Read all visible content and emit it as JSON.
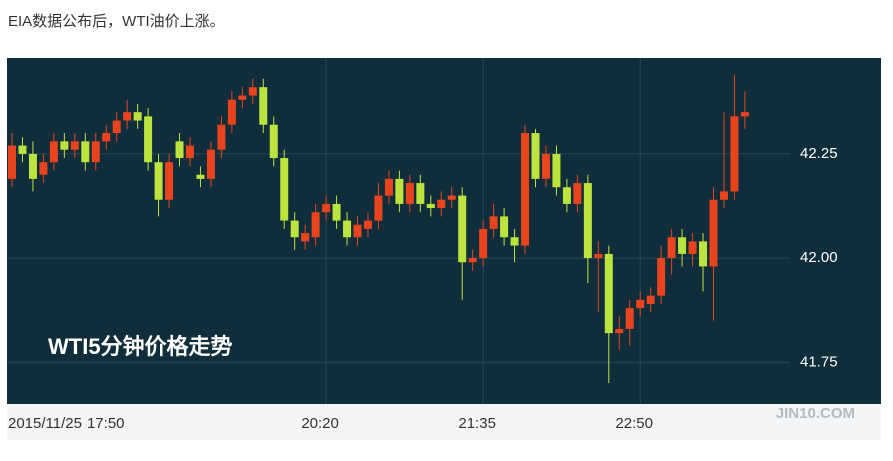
{
  "chart_data": {
    "type": "candlestick",
    "caption": "EIA数据公布后，WTI油价上涨。",
    "title": "WTI5分钟价格走势",
    "watermark": "JIN10.COM",
    "date": "2015/11/25",
    "categories": [
      "17:50",
      null,
      null,
      null,
      null,
      null,
      null,
      null,
      null,
      null,
      null,
      null,
      null,
      null,
      null,
      null,
      null,
      null,
      null,
      null,
      null,
      null,
      null,
      null,
      null,
      null,
      null,
      null,
      null,
      null,
      "20:20",
      null,
      null,
      null,
      null,
      null,
      null,
      null,
      null,
      null,
      null,
      null,
      null,
      null,
      null,
      "21:35",
      null,
      null,
      null,
      null,
      null,
      null,
      null,
      null,
      null,
      null,
      null,
      null,
      null,
      null,
      "22:50",
      null,
      null,
      null,
      null,
      null,
      null,
      null,
      null,
      null,
      null
    ],
    "open": [
      42.19,
      42.27,
      42.25,
      42.2,
      42.23,
      42.28,
      42.26,
      42.28,
      42.23,
      42.28,
      42.3,
      42.33,
      42.35,
      42.34,
      42.23,
      42.14,
      42.28,
      42.24,
      42.2,
      42.19,
      42.26,
      42.32,
      42.38,
      42.39,
      42.41,
      42.32,
      42.24,
      42.09,
      42.04,
      42.05,
      42.11,
      42.13,
      42.09,
      42.05,
      42.07,
      42.09,
      42.15,
      42.19,
      42.13,
      42.18,
      42.13,
      42.12,
      42.14,
      42.15,
      41.99,
      42.0,
      42.07,
      42.1,
      42.05,
      42.03,
      42.3,
      42.19,
      42.25,
      42.17,
      42.13,
      42.18,
      42.0,
      42.01,
      41.82,
      41.83,
      41.88,
      41.89,
      41.91,
      42.0,
      42.05,
      42.01,
      42.04,
      41.98,
      42.14,
      42.16,
      42.34
    ],
    "high": [
      42.3,
      42.29,
      42.28,
      42.25,
      42.3,
      42.3,
      42.3,
      42.3,
      42.3,
      42.32,
      42.35,
      42.38,
      42.37,
      42.36,
      42.25,
      42.25,
      42.3,
      42.29,
      42.22,
      42.28,
      42.34,
      42.4,
      42.41,
      42.43,
      42.43,
      42.34,
      42.26,
      42.11,
      42.08,
      42.13,
      42.15,
      42.15,
      42.11,
      42.1,
      42.11,
      42.18,
      42.21,
      42.21,
      42.2,
      42.2,
      42.15,
      42.16,
      42.17,
      42.17,
      42.02,
      42.09,
      42.13,
      42.12,
      42.07,
      42.32,
      42.31,
      42.27,
      42.27,
      42.19,
      42.2,
      42.2,
      42.04,
      42.03,
      41.86,
      41.9,
      41.92,
      41.93,
      42.03,
      42.07,
      42.07,
      42.06,
      42.06,
      42.17,
      42.35,
      42.44,
      42.4
    ],
    "low": [
      42.17,
      42.23,
      42.16,
      42.18,
      42.21,
      42.24,
      42.24,
      42.21,
      42.21,
      42.26,
      42.28,
      42.31,
      42.31,
      42.21,
      42.1,
      42.12,
      42.22,
      42.22,
      42.17,
      42.17,
      42.24,
      42.3,
      42.36,
      42.37,
      42.3,
      42.22,
      42.07,
      42.02,
      42.02,
      42.03,
      42.09,
      42.07,
      42.03,
      42.03,
      42.05,
      42.07,
      42.13,
      42.11,
      42.11,
      42.11,
      42.1,
      42.1,
      42.12,
      41.9,
      41.97,
      41.98,
      42.05,
      42.03,
      41.99,
      42.01,
      42.17,
      42.17,
      42.15,
      42.11,
      42.11,
      41.94,
      41.87,
      41.7,
      41.78,
      41.79,
      41.86,
      41.87,
      41.89,
      41.96,
      41.98,
      41.98,
      41.92,
      41.85,
      42.12,
      42.14,
      42.31
    ],
    "close": [
      42.27,
      42.25,
      42.19,
      42.23,
      42.28,
      42.26,
      42.28,
      42.23,
      42.28,
      42.3,
      42.33,
      42.35,
      42.33,
      42.23,
      42.14,
      42.23,
      42.24,
      42.27,
      42.19,
      42.26,
      42.32,
      42.38,
      42.39,
      42.41,
      42.32,
      42.24,
      42.09,
      42.05,
      42.06,
      42.11,
      42.13,
      42.09,
      42.05,
      42.08,
      42.09,
      42.15,
      42.19,
      42.13,
      42.18,
      42.13,
      42.12,
      42.14,
      42.15,
      41.99,
      42.0,
      42.07,
      42.1,
      42.05,
      42.03,
      42.3,
      42.19,
      42.25,
      42.17,
      42.13,
      42.18,
      42.0,
      42.01,
      41.82,
      41.83,
      41.88,
      41.9,
      41.91,
      42.0,
      42.05,
      42.01,
      42.04,
      41.98,
      42.14,
      42.16,
      42.34,
      42.35
    ],
    "up_color": "#e9441d",
    "down_color": "#bde33f",
    "ylim": [
      41.65,
      42.48
    ],
    "yticks": [
      41.75,
      {
        "value": 42,
        "label": "42.00"
      },
      42.25
    ],
    "grid": true
  }
}
